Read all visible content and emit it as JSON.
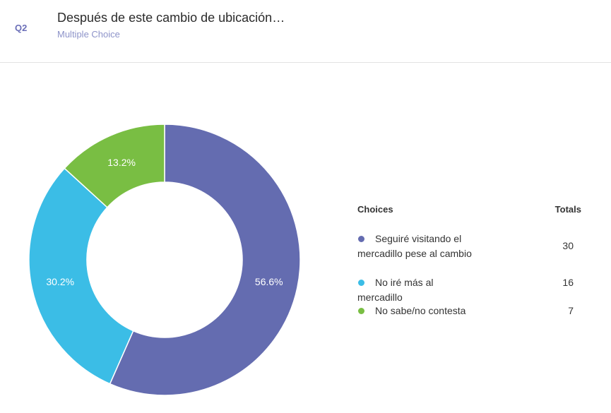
{
  "question": {
    "number": "Q2",
    "title": "Después de este cambio de ubicación…",
    "type": "Multiple Choice"
  },
  "legend": {
    "choices_header": "Choices",
    "totals_header": "Totals"
  },
  "chart_data": {
    "type": "pie",
    "variant": "donut",
    "categories": [
      "Seguiré visitando el mercadillo pese al cambio",
      "No iré más al mercadillo",
      "No sabe/no contesta"
    ],
    "values": [
      30,
      16,
      7
    ],
    "percent_labels": [
      "56.6%",
      "30.2%",
      "13.2%"
    ],
    "colors": [
      "#646cb0",
      "#3bbde6",
      "#79be43"
    ],
    "legend_position": "right"
  }
}
